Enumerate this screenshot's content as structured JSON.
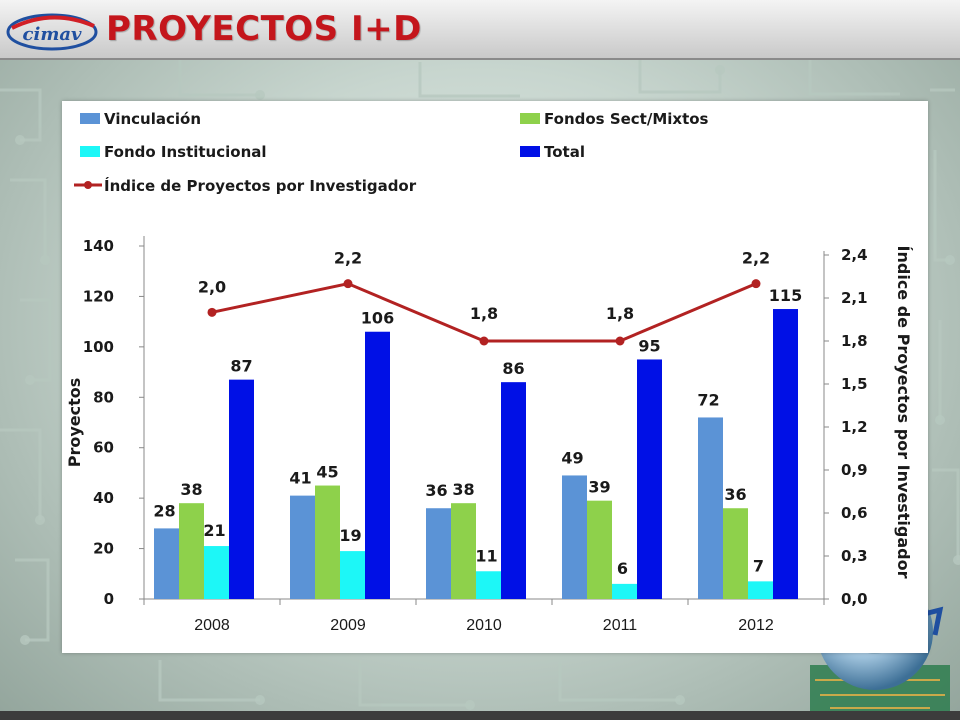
{
  "slide": {
    "title": "PROYECTOS I+D",
    "logo_text": "cimav"
  },
  "colors": {
    "title": "#c4161c",
    "vinculacion": "#5b93d6",
    "fondos": "#8ed14b",
    "institucional": "#1df7f7",
    "total": "#0010e6",
    "indice": "#b22222"
  },
  "chart_data": {
    "type": "bar",
    "categories": [
      "2008",
      "2009",
      "2010",
      "2011",
      "2012"
    ],
    "series": [
      {
        "name": "Vinculación",
        "values": [
          28,
          41,
          36,
          49,
          72
        ],
        "labels": [
          "28",
          "41",
          "36",
          "49",
          "72"
        ]
      },
      {
        "name": "Fondos Sect/Mixtos",
        "values": [
          38,
          45,
          38,
          39,
          36
        ],
        "labels": [
          "38",
          "45",
          "38",
          "39",
          "36"
        ]
      },
      {
        "name": "Fondo Institucional",
        "values": [
          21,
          19,
          11,
          6,
          7
        ],
        "labels": [
          "21",
          "19",
          "11",
          "6",
          "7"
        ]
      },
      {
        "name": "Total",
        "values": [
          87,
          106,
          86,
          95,
          115
        ],
        "labels": [
          "87",
          "106",
          "86",
          "95",
          "115"
        ]
      }
    ],
    "line_series": {
      "name": "Índice de Proyectos por Investigador",
      "axis": "right",
      "values": [
        2.0,
        2.2,
        1.8,
        1.8,
        2.2
      ],
      "labels": [
        "2,0",
        "2,2",
        "1,8",
        "1,8",
        "2,2"
      ]
    },
    "ylabel": "Proyectos",
    "y2label": "Índice de Proyectos por Investigador",
    "ylim": [
      0,
      140
    ],
    "y_ticks": [
      0,
      20,
      40,
      60,
      80,
      100,
      120,
      140
    ],
    "y_tick_labels": [
      "0",
      "20",
      "40",
      "60",
      "80",
      "100",
      "120",
      "140"
    ],
    "y2lim": [
      0,
      2.4
    ],
    "y2_ticks": [
      0,
      0.3,
      0.6,
      0.9,
      1.2,
      1.5,
      1.8,
      2.1,
      2.4
    ],
    "y2_tick_labels": [
      "0,0",
      "0,3",
      "0,6",
      "0,9",
      "1,2",
      "1,5",
      "1,8",
      "2,1",
      "2,4"
    ],
    "grid": false,
    "legend_position": "top"
  }
}
